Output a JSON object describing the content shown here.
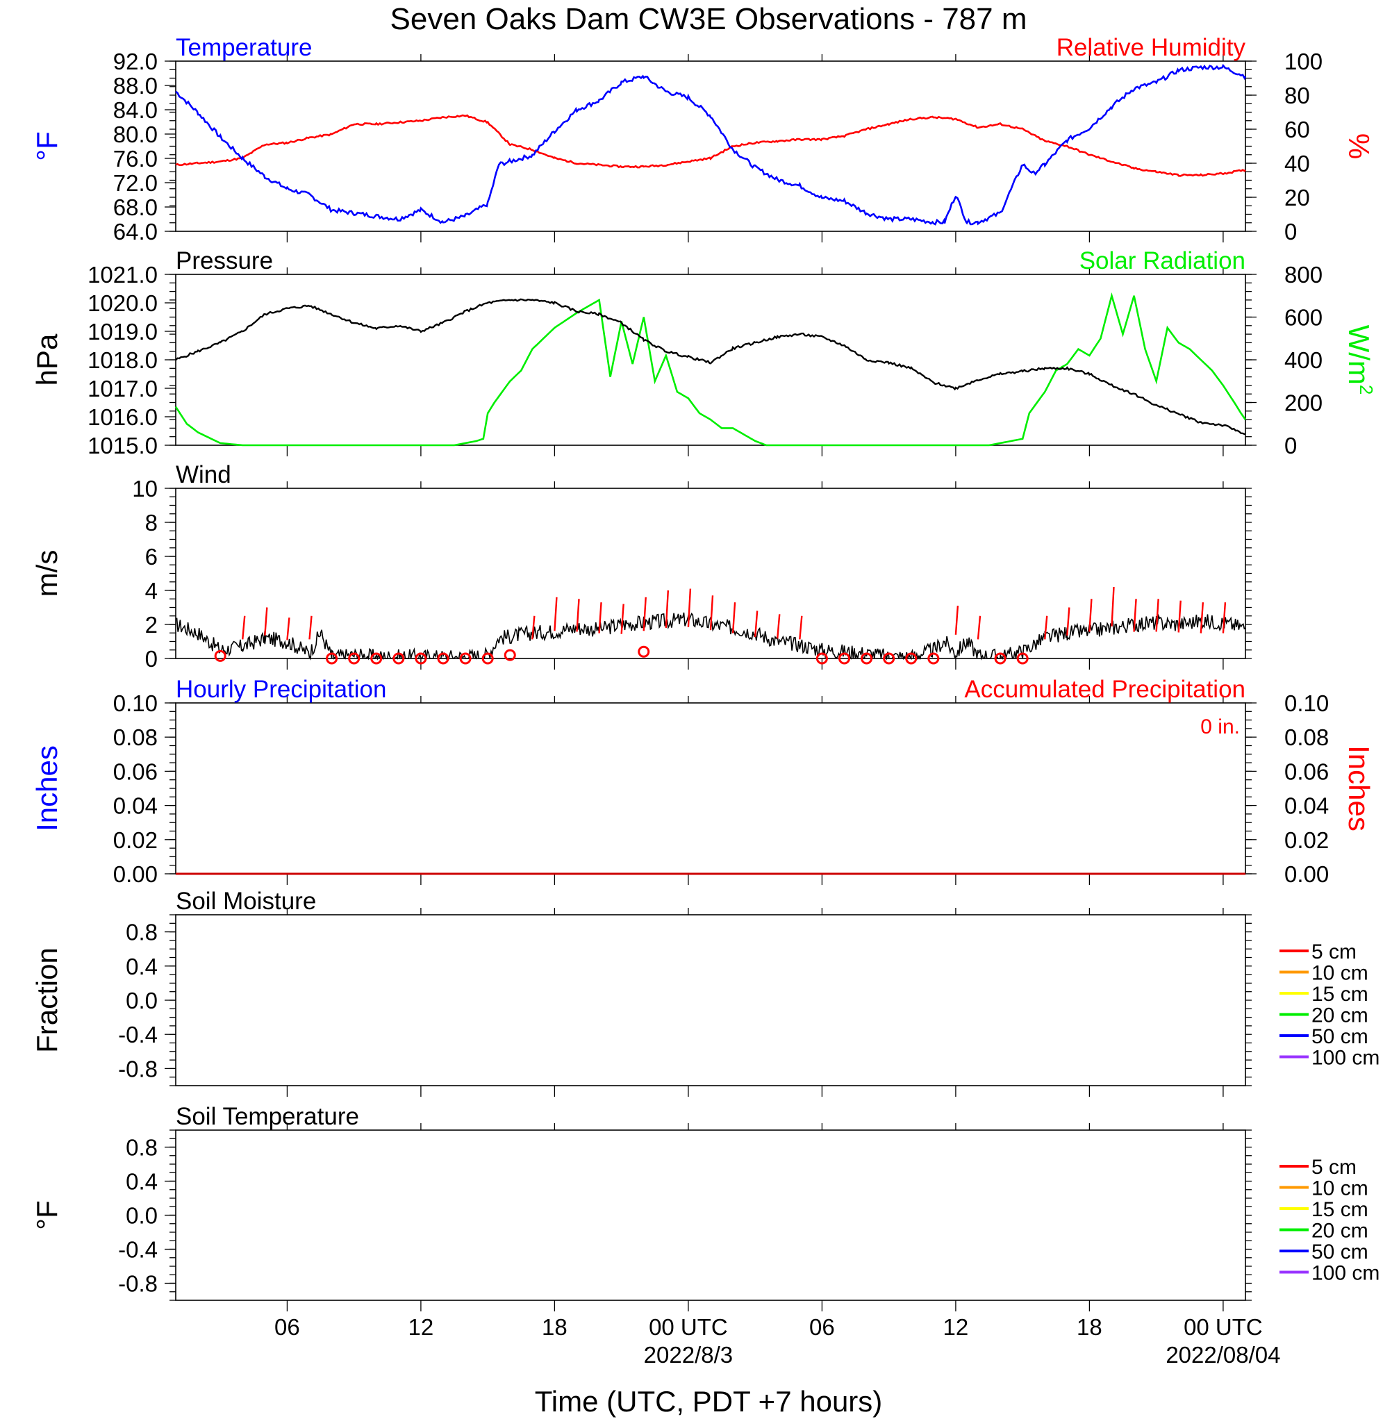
{
  "title": "Seven Oaks Dam CW3E Observations - 787 m",
  "x_axis": {
    "label": "Time (UTC, PDT +7 hours)",
    "hours_range": [
      1,
      49
    ],
    "ticks": [
      {
        "hour": 6,
        "label": "06",
        "sub": ""
      },
      {
        "hour": 12,
        "label": "12",
        "sub": ""
      },
      {
        "hour": 18,
        "label": "18",
        "sub": ""
      },
      {
        "hour": 24,
        "label": "00 UTC",
        "sub": "2022/8/3"
      },
      {
        "hour": 30,
        "label": "06",
        "sub": ""
      },
      {
        "hour": 36,
        "label": "12",
        "sub": ""
      },
      {
        "hour": 42,
        "label": "18",
        "sub": ""
      },
      {
        "hour": 48,
        "label": "00 UTC",
        "sub": "2022/08/04"
      }
    ]
  },
  "colors": {
    "temperature": "#0000ff",
    "humidity": "#ff0000",
    "pressure": "#000000",
    "solar": "#00ee00",
    "wind": "#000000",
    "gust": "#ff0000",
    "hourly_precip": "#0000ff",
    "accum_precip": "#cc0000"
  },
  "chart_data": [
    {
      "type": "line",
      "panel": "temperature-humidity",
      "left_title": "Temperature",
      "right_title": "Relative Humidity",
      "ylabel_left": "°F",
      "ylabel_right": "%",
      "ylim_left": [
        64,
        92
      ],
      "ylim_right": [
        0,
        100
      ],
      "yticks_left": [
        "92.0",
        "88.0",
        "84.0",
        "80.0",
        "76.0",
        "72.0",
        "68.0",
        "64.0"
      ],
      "yticks_right": [
        "100",
        "80",
        "60",
        "40",
        "20",
        "0"
      ],
      "series": [
        {
          "name": "Temperature",
          "axis": "left",
          "x": [
            1,
            2,
            3,
            4,
            5,
            6,
            7,
            8,
            9,
            10,
            11,
            12,
            13,
            14,
            15,
            15.5,
            16,
            17,
            18,
            19,
            20,
            21,
            22,
            23,
            24,
            25,
            26,
            27,
            28,
            29,
            30,
            31,
            32,
            33,
            34,
            35,
            35.5,
            36,
            36.5,
            37,
            38,
            39,
            39.5,
            40,
            41,
            42,
            43,
            44,
            45,
            46,
            47,
            48,
            49
          ],
          "values": [
            87,
            83.5,
            79.5,
            76,
            73,
            71,
            70,
            67.5,
            67,
            66.5,
            66,
            67.5,
            65.5,
            66.5,
            68.5,
            75,
            75.5,
            76.5,
            80.5,
            84,
            85.5,
            88.5,
            89.5,
            87,
            86,
            83,
            77.5,
            74.5,
            72.5,
            71.5,
            69.5,
            69,
            67,
            66,
            66,
            65.5,
            65.5,
            70,
            65.5,
            65.5,
            67,
            75,
            73.5,
            75,
            79,
            81,
            84.5,
            87.5,
            88.5,
            90.5,
            91,
            91,
            89.5
          ]
        },
        {
          "name": "Relative Humidity",
          "axis": "right",
          "x": [
            1,
            2,
            3,
            4,
            5,
            6,
            7,
            8,
            9,
            10,
            11,
            12,
            13,
            14,
            15,
            16,
            17,
            18,
            19,
            20,
            21,
            22,
            23,
            24,
            25,
            26,
            27,
            28,
            29,
            30,
            31,
            32,
            33,
            34,
            35,
            36,
            37,
            38,
            39,
            40,
            41,
            42,
            43,
            44,
            45,
            46,
            47,
            48,
            49
          ],
          "values": [
            39,
            40,
            41,
            43,
            51,
            52,
            55,
            57,
            63,
            63,
            64,
            65,
            67,
            68,
            64,
            51,
            48,
            43,
            40,
            39,
            38,
            38,
            39,
            41,
            43,
            50,
            52,
            53,
            54,
            54,
            56,
            60,
            63,
            66,
            67,
            66,
            61,
            63,
            60,
            53,
            50,
            45,
            41,
            37,
            35,
            33,
            33,
            34,
            36
          ]
        }
      ]
    },
    {
      "type": "line",
      "panel": "pressure-solar",
      "left_title": "Pressure",
      "right_title": "Solar Radiation",
      "ylabel_left": "hPa",
      "ylabel_right": "W/m",
      "ylabel_right_sup": "2",
      "ylim_left": [
        1015,
        1021
      ],
      "ylim_right": [
        0,
        800
      ],
      "yticks_left": [
        "1021.0",
        "1020.0",
        "1019.0",
        "1018.0",
        "1017.0",
        "1016.0",
        "1015.0"
      ],
      "yticks_right": [
        "800",
        "600",
        "400",
        "200",
        "0"
      ],
      "series": [
        {
          "name": "Pressure",
          "axis": "left",
          "x": [
            1,
            2,
            3,
            4,
            5,
            6,
            7,
            8,
            9,
            10,
            11,
            12,
            13,
            14,
            15,
            16,
            17,
            18,
            19,
            20,
            21,
            22,
            23,
            24,
            25,
            26,
            27,
            28,
            29,
            30,
            31,
            32,
            33,
            34,
            35,
            36,
            37,
            38,
            39,
            40,
            41,
            42,
            43,
            44,
            45,
            46,
            47,
            48,
            49
          ],
          "values": [
            1018.0,
            1018.3,
            1018.6,
            1019.0,
            1019.6,
            1019.8,
            1019.9,
            1019.6,
            1019.3,
            1019.1,
            1019.2,
            1019.0,
            1019.3,
            1019.7,
            1020.0,
            1020.1,
            1020.1,
            1020.0,
            1019.7,
            1019.6,
            1019.3,
            1018.7,
            1018.3,
            1018.1,
            1017.9,
            1018.4,
            1018.6,
            1018.8,
            1018.9,
            1018.8,
            1018.5,
            1018.0,
            1017.9,
            1017.7,
            1017.2,
            1017.0,
            1017.3,
            1017.5,
            1017.6,
            1017.7,
            1017.7,
            1017.5,
            1017.1,
            1016.8,
            1016.4,
            1016.1,
            1015.8,
            1015.7,
            1015.4
          ]
        },
        {
          "name": "Solar Radiation",
          "axis": "right",
          "x": [
            1,
            1.5,
            2,
            3,
            4,
            8,
            12,
            13.5,
            14.5,
            14.8,
            15,
            15.3,
            16,
            16.5,
            17,
            18,
            19,
            20,
            20.5,
            21,
            21.5,
            22,
            22.5,
            23,
            23.5,
            24,
            24.5,
            25,
            25.5,
            26,
            27,
            27.5,
            28,
            32,
            36,
            37.5,
            38.5,
            39,
            39.3,
            40,
            40.5,
            41,
            41.5,
            42,
            42.5,
            43,
            43.5,
            44,
            44.5,
            45,
            45.5,
            46,
            46.5,
            47,
            47.5,
            48,
            48.5,
            48.8,
            49
          ],
          "values": [
            180,
            100,
            60,
            10,
            0,
            0,
            0,
            0,
            20,
            30,
            150,
            200,
            300,
            350,
            450,
            550,
            620,
            680,
            320,
            580,
            380,
            600,
            300,
            420,
            250,
            220,
            150,
            120,
            80,
            80,
            20,
            0,
            0,
            0,
            0,
            0,
            20,
            30,
            150,
            250,
            350,
            380,
            450,
            420,
            500,
            700,
            520,
            700,
            450,
            300,
            550,
            480,
            450,
            400,
            350,
            280,
            200,
            150,
            120
          ]
        }
      ]
    },
    {
      "type": "line",
      "panel": "wind",
      "left_title": "Wind",
      "ylabel_left": "m/s",
      "ylim_left": [
        0,
        10
      ],
      "yticks_left": [
        "10",
        "8",
        "6",
        "4",
        "2",
        "0"
      ],
      "series": [
        {
          "name": "Wind",
          "axis": "left",
          "x": [
            1,
            2,
            3,
            4,
            5,
            6,
            7,
            7.5,
            8,
            9,
            10,
            11,
            12,
            13,
            14,
            15,
            15.5,
            16,
            17,
            18,
            19,
            20,
            21,
            22,
            23,
            24,
            25,
            26,
            27,
            28,
            29,
            30,
            31,
            32,
            33,
            34,
            35,
            35.5,
            36,
            36.5,
            37,
            38,
            39,
            40,
            41,
            42,
            43,
            44,
            45,
            46,
            47,
            48,
            49
          ],
          "values": [
            2.0,
            1.5,
            0.5,
            0.7,
            1.2,
            1.0,
            0.3,
            1.5,
            0.1,
            0.2,
            0.1,
            0.1,
            0.1,
            0.1,
            0.1,
            0.2,
            1.2,
            1.3,
            1.5,
            1.6,
            1.8,
            1.7,
            2.0,
            2.1,
            2.2,
            2.3,
            2.0,
            1.8,
            1.5,
            1.0,
            0.8,
            0.5,
            0.4,
            0.3,
            0.1,
            0.1,
            0.5,
            1.0,
            0.3,
            1.0,
            0.2,
            0.1,
            0.4,
            1.2,
            1.5,
            1.6,
            1.8,
            2.0,
            2.1,
            2.0,
            2.2,
            2.1,
            1.8
          ]
        }
      ],
      "gusts": {
        "x": [
          4,
          5,
          6,
          7,
          17,
          18,
          19,
          20,
          21,
          22,
          23,
          24,
          25,
          26,
          27,
          28,
          29,
          36,
          37,
          40,
          41,
          42,
          43,
          44,
          45,
          46,
          47,
          48
        ],
        "values": [
          2.5,
          3.0,
          2.4,
          2.5,
          2.5,
          3.6,
          3.5,
          3.3,
          3.2,
          3.6,
          4.0,
          4.1,
          3.7,
          3.3,
          2.8,
          2.6,
          2.5,
          3.1,
          2.5,
          2.5,
          3.0,
          3.5,
          4.2,
          3.5,
          3.5,
          3.4,
          3.3,
          3.3
        ]
      },
      "calm_markers": {
        "x": [
          3,
          8,
          9,
          10,
          11,
          12,
          13,
          14,
          15,
          16,
          22,
          30,
          31,
          32,
          33,
          34,
          35,
          38,
          39
        ],
        "values": [
          0.15,
          0,
          0,
          0,
          0,
          0,
          0,
          0,
          0,
          0.2,
          0.4,
          0,
          0,
          0,
          0,
          0,
          0,
          0,
          0
        ]
      }
    },
    {
      "type": "bar",
      "panel": "precipitation",
      "left_title": "Hourly Precipitation",
      "right_title": "Accumulated Precipitation",
      "accumulated_total": "0 in.",
      "ylabel_left": "Inches",
      "ylabel_right": "Inches",
      "ylim_left": [
        0,
        0.1
      ],
      "ylim_right": [
        0,
        0.1
      ],
      "yticks_left": [
        "0.10",
        "0.08",
        "0.06",
        "0.04",
        "0.02",
        "0.00"
      ],
      "yticks_right": [
        "0.10",
        "0.08",
        "0.06",
        "0.04",
        "0.02",
        "0.00"
      ],
      "series": [
        {
          "name": "Hourly Precipitation",
          "x": [
            1,
            49
          ],
          "values": [
            0,
            0
          ]
        },
        {
          "name": "Accumulated Precipitation",
          "x": [
            1,
            49
          ],
          "values": [
            0,
            0
          ]
        }
      ]
    },
    {
      "type": "line",
      "panel": "soil-moisture",
      "left_title": "Soil Moisture",
      "ylabel_left": "Fraction",
      "ylim_left": [
        -1,
        1
      ],
      "yticks_left": [
        "0.8",
        "0.4",
        "0.0",
        "-0.4",
        "-0.8"
      ],
      "legend": [
        {
          "label": "5 cm",
          "color": "#ff0000"
        },
        {
          "label": "10 cm",
          "color": "#ff9900"
        },
        {
          "label": "15 cm",
          "color": "#ffff00"
        },
        {
          "label": "20 cm",
          "color": "#00ee00"
        },
        {
          "label": "50 cm",
          "color": "#0000ff"
        },
        {
          "label": "100 cm",
          "color": "#9933ff"
        }
      ],
      "series": []
    },
    {
      "type": "line",
      "panel": "soil-temperature",
      "left_title": "Soil Temperature",
      "ylabel_left": "°F",
      "ylim_left": [
        -1,
        1
      ],
      "yticks_left": [
        "0.8",
        "0.4",
        "0.0",
        "-0.4",
        "-0.8"
      ],
      "legend": [
        {
          "label": "5 cm",
          "color": "#ff0000"
        },
        {
          "label": "10 cm",
          "color": "#ff9900"
        },
        {
          "label": "15 cm",
          "color": "#ffff00"
        },
        {
          "label": "20 cm",
          "color": "#00ee00"
        },
        {
          "label": "50 cm",
          "color": "#0000ff"
        },
        {
          "label": "100 cm",
          "color": "#9933ff"
        }
      ],
      "series": []
    }
  ]
}
